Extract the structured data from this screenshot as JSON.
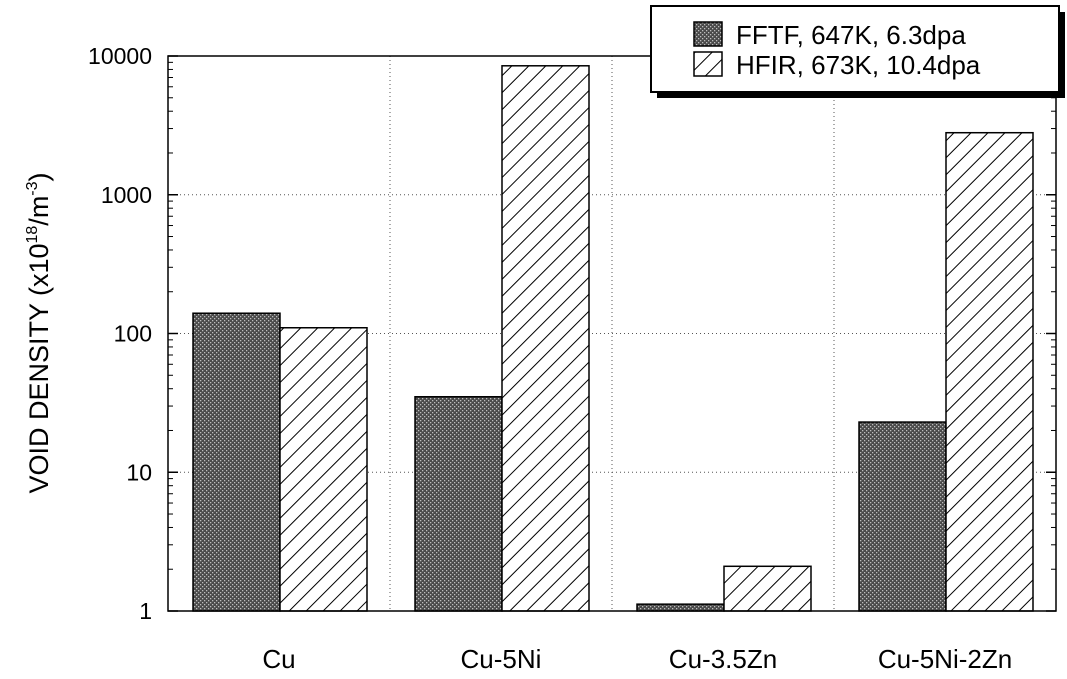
{
  "chart_data": {
    "type": "bar",
    "categories": [
      "Cu",
      "Cu-5Ni",
      "Cu-3.5Zn",
      "Cu-5Ni-2Zn"
    ],
    "series": [
      {
        "name": "FFTF, 647K, 6.3dpa",
        "values": [
          140,
          35,
          1.12,
          23
        ],
        "fill": "crosshatch-dark"
      },
      {
        "name": "HFIR, 673K, 10.4dpa",
        "values": [
          110,
          8500,
          2.1,
          2800
        ],
        "fill": "diagonal-hatch"
      }
    ],
    "title": "",
    "xlabel": "",
    "ylabel": "VOID DENSITY (x10",
    "ylabel_exp1": "18",
    "ylabel_mid": "/m",
    "ylabel_exp2": "-3",
    "ylabel_end": ")",
    "yscale": "log",
    "ylim": [
      1,
      10000
    ],
    "yticks": [
      "1",
      "10",
      "100",
      "1000",
      "10000"
    ],
    "grid": "dotted",
    "legend_position": "top-right",
    "colors": {
      "bar_edge": "#000000",
      "dark_fill": "#3a3a3a",
      "background": "#ffffff"
    }
  }
}
